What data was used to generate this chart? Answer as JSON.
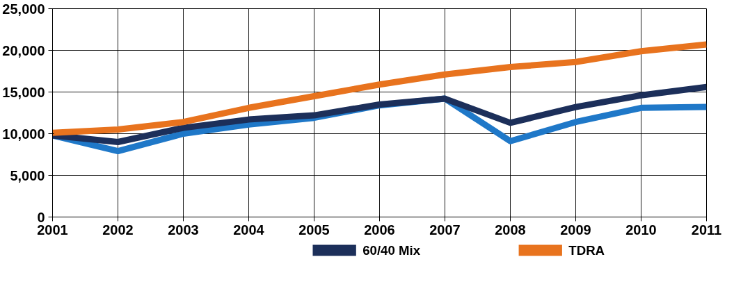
{
  "chart_data": {
    "type": "line",
    "x": [
      2001,
      2002,
      2003,
      2004,
      2005,
      2006,
      2007,
      2008,
      2009,
      2010,
      2011
    ],
    "series": [
      {
        "color": "#1f78c8",
        "values": [
          9800,
          7900,
          10000,
          11100,
          11900,
          13400,
          14200,
          9100,
          11400,
          13100,
          13200
        ]
      },
      {
        "name": "60/40 Mix",
        "color": "#1c2f5a",
        "values": [
          9800,
          9000,
          10700,
          11700,
          12200,
          13500,
          14200,
          11300,
          13200,
          14600,
          15600
        ]
      },
      {
        "name": "TDRA",
        "color": "#e8731e",
        "values": [
          10100,
          10500,
          11400,
          13100,
          14500,
          15900,
          17100,
          18000,
          18600,
          19900,
          20700
        ]
      }
    ],
    "xlim": [
      2001,
      2011
    ],
    "xticks": [
      2001,
      2002,
      2003,
      2004,
      2005,
      2006,
      2007,
      2008,
      2009,
      2010,
      2011
    ],
    "ylim": [
      0,
      25000
    ],
    "yticks": [
      {
        "value": 0,
        "label": "0"
      },
      {
        "value": 5000,
        "label": "5,000"
      },
      {
        "value": 10000,
        "label": "10,000"
      },
      {
        "value": 15000,
        "label": "15,000"
      },
      {
        "value": 20000,
        "label": "20,000"
      },
      {
        "value": 25000,
        "label": "25,000"
      }
    ],
    "grid": true,
    "legend": "bottom",
    "marker": "none",
    "line_style": "solid"
  }
}
